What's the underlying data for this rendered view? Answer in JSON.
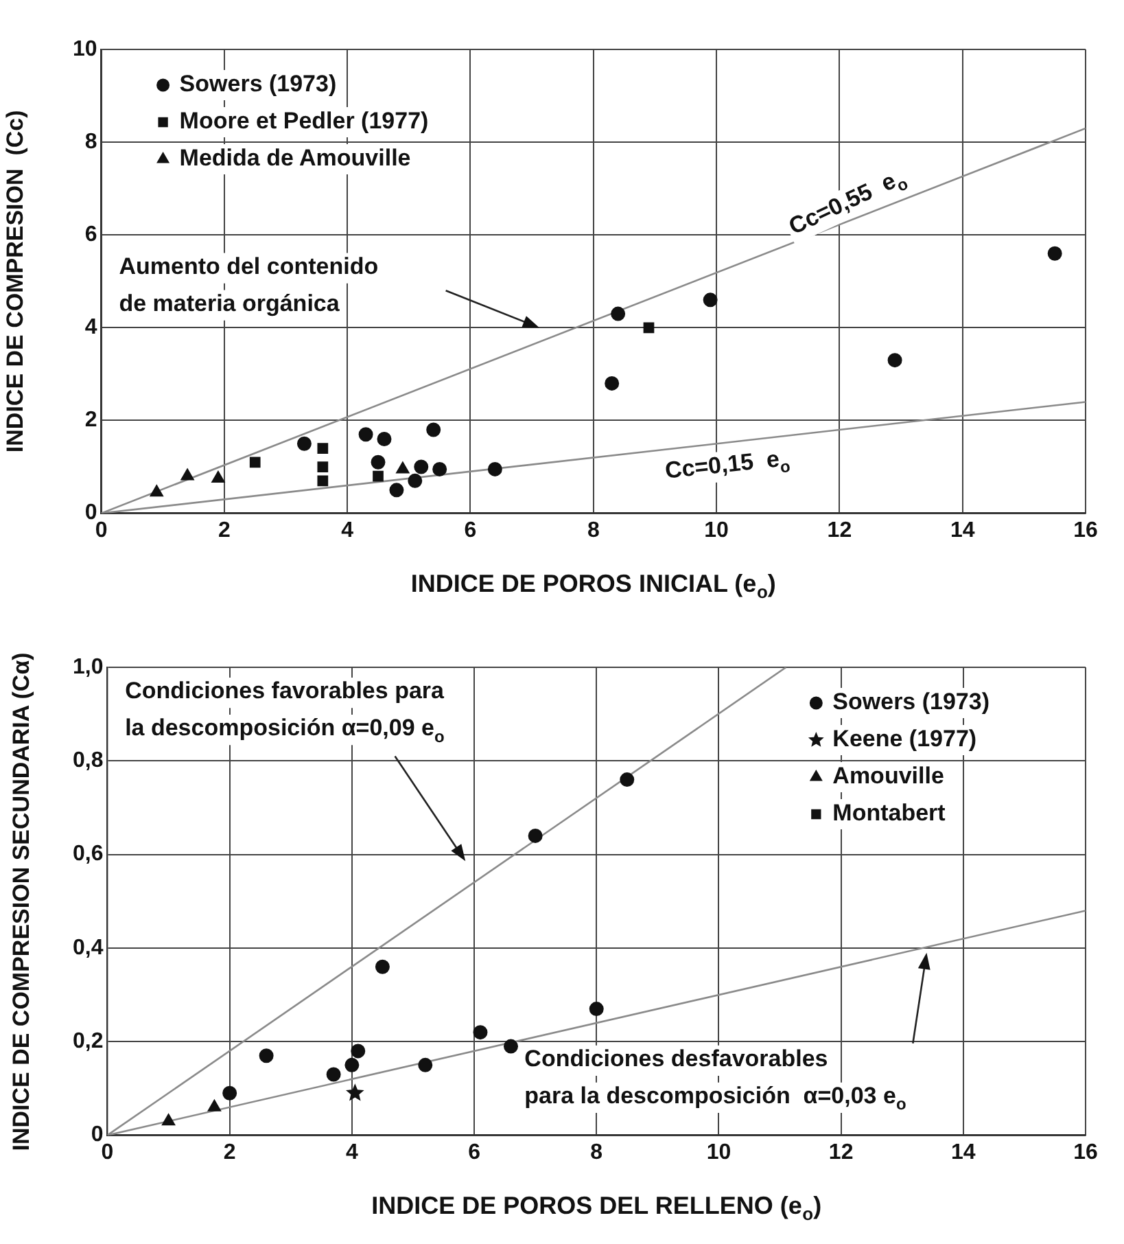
{
  "chart_data": [
    {
      "type": "scatter",
      "xlabel": "INDICE DE POROS INICIAL (e$_{o}$)",
      "ylabel": "INDICE DE COMPRESION  (Cc)",
      "xlim": [
        0,
        16
      ],
      "ylim": [
        0,
        10
      ],
      "xticks": [
        0,
        2,
        4,
        6,
        8,
        10,
        12,
        14,
        16
      ],
      "yticks": [
        0,
        2,
        4,
        6,
        8,
        10
      ],
      "grid": true,
      "legend": "top left",
      "series": [
        {
          "name": "Sowers (1973)",
          "color": "#111111",
          "marker": "circle",
          "x": [
            3.3,
            4.3,
            4.6,
            5.4,
            4.5,
            4.8,
            5.1,
            5.2,
            5.5,
            6.4,
            8.4,
            8.3,
            9.9,
            12.9,
            15.5
          ],
          "values": [
            1.5,
            1.7,
            1.6,
            1.8,
            1.1,
            0.5,
            0.7,
            1.0,
            0.95,
            0.95,
            4.3,
            2.8,
            4.6,
            3.3,
            5.6
          ]
        },
        {
          "name": "Moore et Pedler (1977)",
          "color": "#111111",
          "marker": "square",
          "x": [
            2.5,
            3.6,
            3.6,
            3.6,
            4.5,
            8.9
          ],
          "values": [
            1.1,
            1.4,
            1.0,
            0.7,
            0.8,
            4.0
          ]
        },
        {
          "name": "Medida de Amouville",
          "color": "#111111",
          "marker": "triangle",
          "x": [
            0.9,
            1.4,
            1.9,
            4.9
          ],
          "values": [
            0.45,
            0.8,
            0.75,
            0.95
          ]
        },
        {
          "type": "line",
          "color": "#8a8a8a",
          "marker": "none",
          "x": [
            0,
            16
          ],
          "values": [
            0,
            8.3
          ]
        },
        {
          "type": "line",
          "color": "#8a8a8a",
          "marker": "none",
          "x": [
            0,
            16
          ],
          "values": [
            0,
            2.4
          ]
        }
      ],
      "annotations": [
        "Aumento del contenido\nde materia orgánica",
        "Cc=0,55  e$_{o}$",
        "Cc=0,15  e$_{o}$"
      ]
    },
    {
      "type": "scatter",
      "xlabel": "INDICE DE POROS DEL RELLENO (e$_{o}$)",
      "ylabel": "INDICE DE COMPRESION SECUNDARIA (Cα)",
      "xlim": [
        0,
        16
      ],
      "ylim": [
        0,
        1
      ],
      "xticks": [
        0,
        2,
        4,
        6,
        8,
        10,
        12,
        14,
        16
      ],
      "yticks": [
        0,
        {
          "value": 0.2,
          "label": "0,2"
        },
        {
          "value": 0.4,
          "label": "0,4"
        },
        {
          "value": 0.6,
          "label": "0,6"
        },
        {
          "value": 0.8,
          "label": "0,8"
        },
        {
          "value": 1,
          "label": "1,0"
        }
      ],
      "grid": true,
      "legend": "top right",
      "series": [
        {
          "name": "Sowers (1973)",
          "color": "#111111",
          "marker": "circle",
          "x": [
            2.0,
            2.6,
            3.7,
            4.0,
            4.1,
            4.5,
            5.2,
            6.1,
            6.6,
            7.0,
            8.0,
            8.5
          ],
          "values": [
            0.09,
            0.17,
            0.13,
            0.15,
            0.18,
            0.36,
            0.15,
            0.22,
            0.19,
            0.64,
            0.27,
            0.76
          ]
        },
        {
          "name": "Keene (1977)",
          "color": "#111111",
          "marker": "star",
          "x": [
            4.05
          ],
          "values": [
            0.09
          ]
        },
        {
          "name": "Amouville",
          "color": "#111111",
          "marker": "triangle",
          "x": [
            1.0,
            1.75
          ],
          "values": [
            0.03,
            0.06
          ]
        },
        {
          "name": "Montabert",
          "color": "#111111",
          "marker": "square"
        },
        {
          "type": "line",
          "color": "#8a8a8a",
          "marker": "none",
          "x": [
            0,
            11.1
          ],
          "values": [
            0,
            1.0
          ]
        },
        {
          "type": "line",
          "color": "#8a8a8a",
          "marker": "none",
          "x": [
            0,
            16
          ],
          "values": [
            0,
            0.48
          ]
        }
      ],
      "annotations": [
        "Condiciones favorables para\nla descomposición α=0,09 e$_{o}$",
        {
          "text": "Condiciones desfavorables\npara la descomposición  α=0,03 e$_{o}$",
          "x": 13.4,
          "y": 0.39
        }
      ]
    }
  ]
}
